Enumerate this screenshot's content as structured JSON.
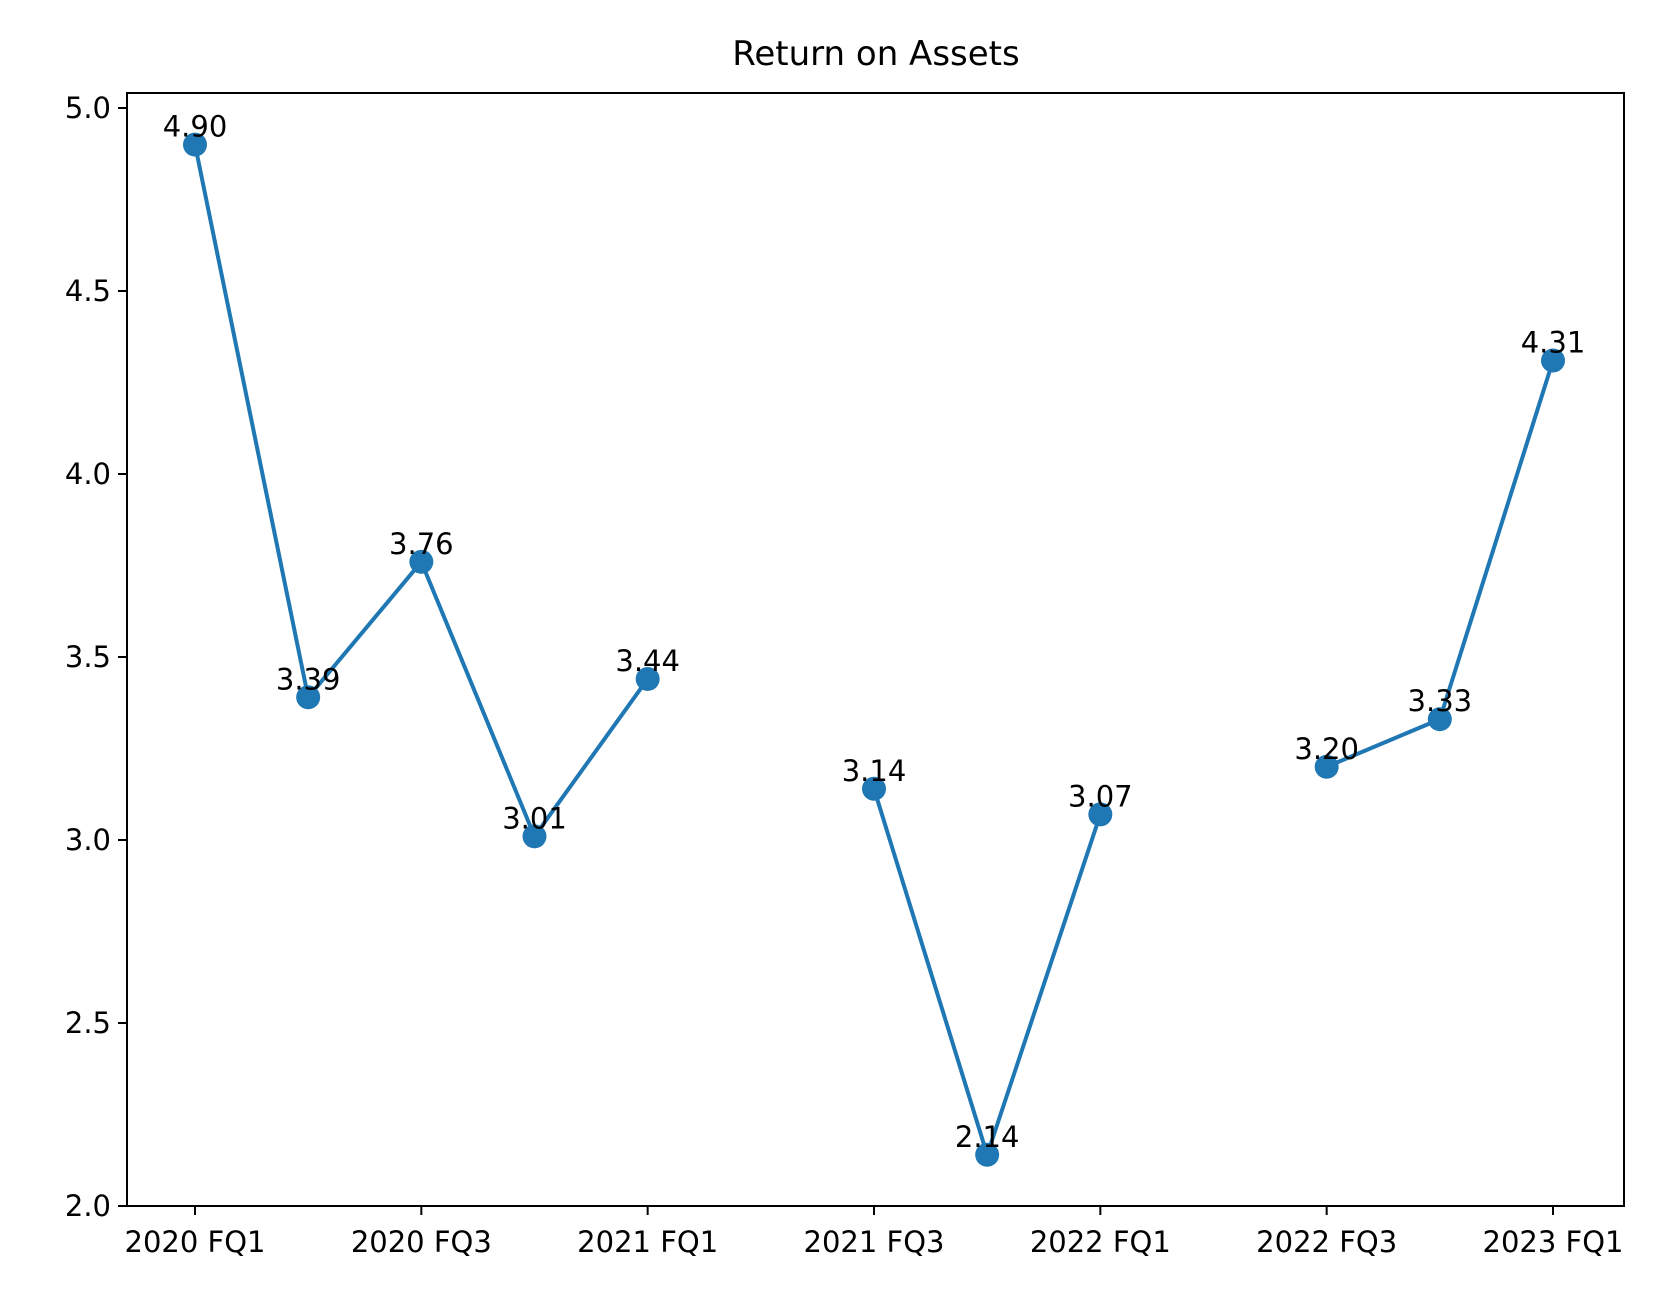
{
  "chart_data": {
    "type": "line",
    "title": "Return on Assets",
    "xlabel": "",
    "ylabel": "",
    "ylim": [
      2.0,
      5.0
    ],
    "yticks": [
      "2.0",
      "2.5",
      "3.0",
      "3.5",
      "4.0",
      "4.5",
      "5.0"
    ],
    "xticks": [
      "2020 FQ1",
      "2020 FQ3",
      "2021 FQ1",
      "2021 FQ3",
      "2022 FQ1",
      "2022 FQ3",
      "2023 FQ1"
    ],
    "grid": false,
    "color": "#1f77b4",
    "points": [
      {
        "x": "2020 FQ1",
        "y": 4.9,
        "label": "4.90"
      },
      {
        "x": "2020 FQ2",
        "y": 3.39,
        "label": "3.39"
      },
      {
        "x": "2020 FQ3",
        "y": 3.76,
        "label": "3.76"
      },
      {
        "x": "2020 FQ4",
        "y": 3.01,
        "label": "3.01"
      },
      {
        "x": "2021 FQ1",
        "y": 3.44,
        "label": "3.44"
      },
      {
        "x": "2021 FQ2",
        "y": null,
        "label": ""
      },
      {
        "x": "2021 FQ3",
        "y": 3.14,
        "label": "3.14"
      },
      {
        "x": "2021 FQ4",
        "y": 2.14,
        "label": "2.14"
      },
      {
        "x": "2022 FQ1",
        "y": 3.07,
        "label": "3.07"
      },
      {
        "x": "2022 FQ2",
        "y": null,
        "label": ""
      },
      {
        "x": "2022 FQ3",
        "y": 3.2,
        "label": "3.20"
      },
      {
        "x": "2022 FQ4",
        "y": 3.33,
        "label": "3.33"
      },
      {
        "x": "2023 FQ1",
        "y": 4.31,
        "label": "4.31"
      }
    ]
  }
}
